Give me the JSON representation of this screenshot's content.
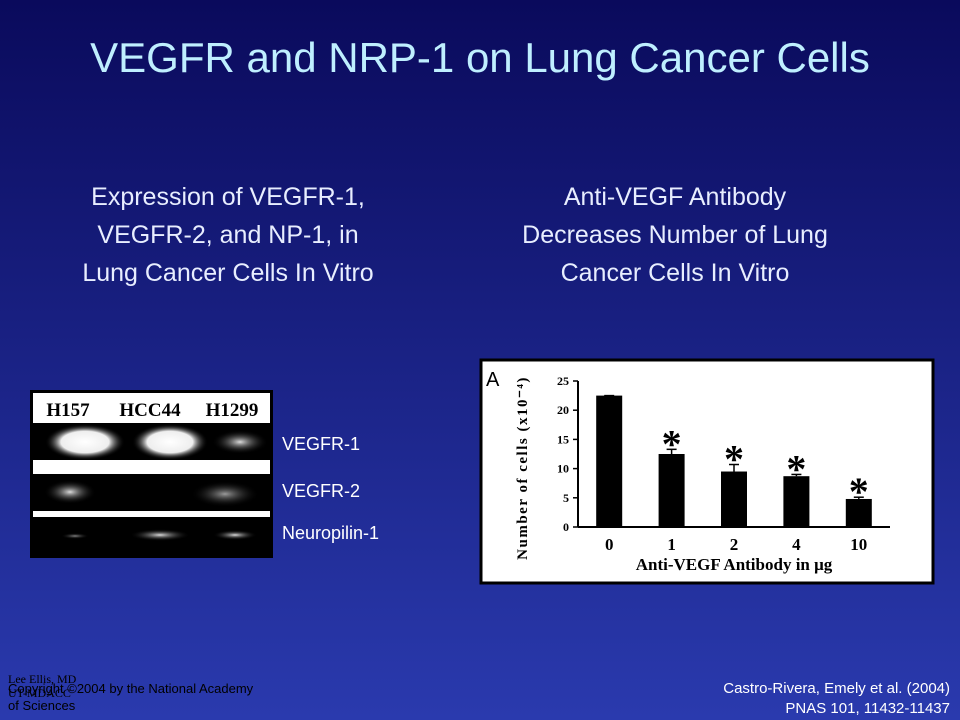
{
  "title": "VEGFR and NRP-1 on Lung Cancer Cells",
  "left": {
    "heading": [
      "Expression of VEGFR-1,",
      "VEGFR-2, and NP-1, in",
      "Lung Cancer Cells In Vitro"
    ],
    "blot_columns": [
      "H157",
      "HCC44",
      "H1299"
    ],
    "blot_rows": [
      "VEGFR-1",
      "VEGFR-2",
      "Neuropilin-1"
    ]
  },
  "right": {
    "heading": [
      "Anti-VEGF Antibody",
      "Decreases Number of Lung",
      "Cancer Cells In Vitro"
    ]
  },
  "chart_data": {
    "type": "bar",
    "panel_label": "A",
    "y_label": "Number of cells (x10⁻⁴)",
    "x_label": "Anti-VEGF Antibody in μg",
    "categories": [
      "0",
      "1",
      "2",
      "4",
      "10"
    ],
    "values": [
      22.5,
      12.5,
      9.5,
      8.7,
      4.8
    ],
    "errors": [
      0,
      0.8,
      1.2,
      0.3,
      0.3
    ],
    "stars": [
      "*",
      "*",
      "*",
      "*"
    ],
    "color": "#000000",
    "ylim": [
      0,
      25
    ],
    "yticks": [
      0,
      5,
      10,
      15,
      20,
      25
    ]
  },
  "footer": {
    "author": [
      "Lee Ellis, MD",
      "UT-MDACC"
    ],
    "copyright": [
      "Copyright ©2004 by the National Academy",
      "of Sciences"
    ],
    "citation": [
      "Castro-Rivera, Emely et al. (2004)",
      "PNAS 101, 11432-11437"
    ]
  }
}
